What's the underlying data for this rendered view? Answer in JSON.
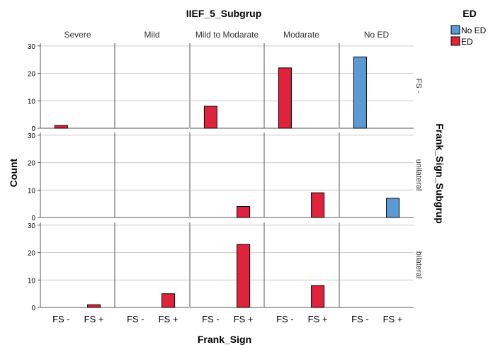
{
  "chart_data": {
    "type": "bar",
    "title": "IIEF_5_Subgrup",
    "xlabel": "Frank_Sign",
    "ylabel": "Count",
    "row_label": "Frank_Sign_Subgrup",
    "columns": [
      "Severe",
      "Mild",
      "Mild to Modarate",
      "Modarate",
      "No ED"
    ],
    "rows": [
      "FS -",
      "unilateral",
      "bilateral"
    ],
    "categories": [
      "FS -",
      "FS +"
    ],
    "yticks": [
      0,
      10,
      20,
      30
    ],
    "ylim": [
      0,
      31
    ],
    "grid": true,
    "legend": {
      "title": "ED",
      "position": "top-right",
      "entries": [
        {
          "name": "No ED",
          "color": "#5b9bd5"
        },
        {
          "name": "ED",
          "color": "#e0223c"
        }
      ]
    },
    "bars": [
      {
        "row": "FS -",
        "column": "Severe",
        "x": "FS -",
        "series": "ED",
        "value": 1
      },
      {
        "row": "FS -",
        "column": "Mild to Modarate",
        "x": "FS -",
        "series": "ED",
        "value": 8
      },
      {
        "row": "FS -",
        "column": "Modarate",
        "x": "FS -",
        "series": "ED",
        "value": 22
      },
      {
        "row": "FS -",
        "column": "No ED",
        "x": "FS -",
        "series": "No ED",
        "value": 26
      },
      {
        "row": "unilateral",
        "column": "Mild to Modarate",
        "x": "FS +",
        "series": "ED",
        "value": 4
      },
      {
        "row": "unilateral",
        "column": "Modarate",
        "x": "FS +",
        "series": "ED",
        "value": 9
      },
      {
        "row": "unilateral",
        "column": "No ED",
        "x": "FS +",
        "series": "No ED",
        "value": 7
      },
      {
        "row": "bilateral",
        "column": "Severe",
        "x": "FS +",
        "series": "ED",
        "value": 1
      },
      {
        "row": "bilateral",
        "column": "Mild",
        "x": "FS +",
        "series": "ED",
        "value": 5
      },
      {
        "row": "bilateral",
        "column": "Mild to Modarate",
        "x": "FS +",
        "series": "ED",
        "value": 23
      },
      {
        "row": "bilateral",
        "column": "Modarate",
        "x": "FS +",
        "series": "ED",
        "value": 8
      }
    ]
  }
}
